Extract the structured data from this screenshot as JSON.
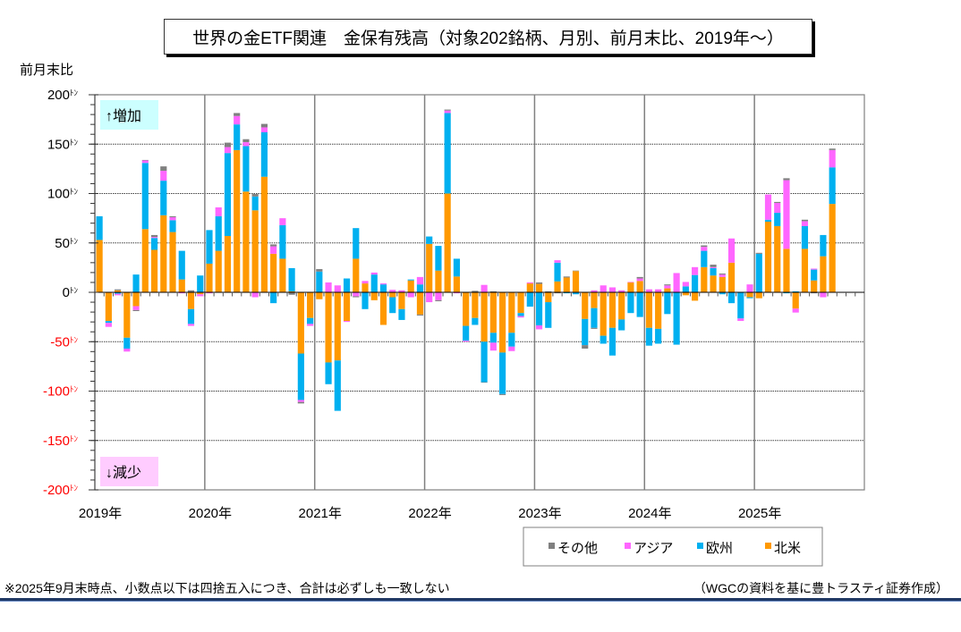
{
  "page": {
    "footnote": "※2025年9月末時点、小数点以下は四捨五入につき、合計は必ずしも一致しない",
    "source": "（WGCの資料を基に豊トラスティ証券作成）"
  },
  "chart_data": {
    "type": "bar",
    "stacked": true,
    "title": "世界の金ETF関連　金保有残高（対象202銘柄、月別、前月末比、2019年～）",
    "xlabel": "",
    "ylabel": "前月末比",
    "y_unit_suffix": "ﾄﾝ",
    "ylim": [
      -200,
      200
    ],
    "y_ticks": [
      200,
      150,
      100,
      50,
      0,
      -50,
      -100,
      -150,
      -200
    ],
    "y_minor_step": 10,
    "negative_label_color": "#FF0000",
    "grid": true,
    "xlim": [
      "2019-01",
      "2025-12"
    ],
    "x_ticks": [
      {
        "month": "2019-01",
        "label": "2019年"
      },
      {
        "month": "2020-01",
        "label": "2020年"
      },
      {
        "month": "2021-01",
        "label": "2021年"
      },
      {
        "month": "2022-01",
        "label": "2022年"
      },
      {
        "month": "2023-01",
        "label": "2023年"
      },
      {
        "month": "2024-01",
        "label": "2024年"
      },
      {
        "month": "2025-01",
        "label": "2025年"
      }
    ],
    "annotations": {
      "increase": {
        "text": "↑増加",
        "color": "#CCFFFF"
      },
      "decrease": {
        "text": "↓減少",
        "color": "#FFCCFF"
      }
    },
    "legend": {
      "position": "bottom-right"
    },
    "categories": [
      "2019-01",
      "2019-02",
      "2019-03",
      "2019-04",
      "2019-05",
      "2019-06",
      "2019-07",
      "2019-08",
      "2019-09",
      "2019-10",
      "2019-11",
      "2019-12",
      "2020-01",
      "2020-02",
      "2020-03",
      "2020-04",
      "2020-05",
      "2020-06",
      "2020-07",
      "2020-08",
      "2020-09",
      "2020-10",
      "2020-11",
      "2020-12",
      "2021-01",
      "2021-02",
      "2021-03",
      "2021-04",
      "2021-05",
      "2021-06",
      "2021-07",
      "2021-08",
      "2021-09",
      "2021-10",
      "2021-11",
      "2021-12",
      "2022-01",
      "2022-02",
      "2022-03",
      "2022-04",
      "2022-05",
      "2022-06",
      "2022-07",
      "2022-08",
      "2022-09",
      "2022-10",
      "2022-11",
      "2022-12",
      "2023-01",
      "2023-02",
      "2023-03",
      "2023-04",
      "2023-05",
      "2023-06",
      "2023-07",
      "2023-08",
      "2023-09",
      "2023-10",
      "2023-11",
      "2023-12",
      "2024-01",
      "2024-02",
      "2024-03",
      "2024-04",
      "2024-05",
      "2024-06",
      "2024-07",
      "2024-08",
      "2024-09",
      "2024-10",
      "2024-11",
      "2024-12",
      "2025-01",
      "2025-02",
      "2025-03",
      "2025-04",
      "2025-05",
      "2025-06",
      "2025-07",
      "2025-08",
      "2025-09"
    ],
    "series": [
      {
        "name": "北米",
        "key": "north-america",
        "color": "#FF9900",
        "values": [
          53,
          -29,
          2,
          -46,
          -14,
          64,
          43,
          78,
          61,
          13,
          -17,
          -2,
          29,
          42,
          57,
          144,
          102,
          83,
          117,
          39,
          34,
          1,
          -62,
          -26,
          -7,
          -71,
          -69,
          -29,
          34,
          9,
          -8,
          -33,
          -5,
          -17,
          12,
          -22.5,
          49,
          22,
          100,
          16,
          -34,
          -26,
          -50,
          -41,
          -61,
          -41,
          -21,
          9,
          8.5,
          -10,
          11,
          15,
          21.5,
          -27,
          -16,
          -44,
          -36,
          -27.5,
          10,
          11.5,
          -36,
          -37,
          4,
          0,
          -3,
          -8.5,
          25.5,
          17,
          15.5,
          30,
          0,
          -5,
          -6,
          71.5,
          67,
          44,
          -16.5,
          44,
          12,
          36.5,
          89.5
        ]
      },
      {
        "name": "欧州",
        "key": "europe",
        "color": "#00B0F0",
        "values": [
          24,
          -2,
          -1.5,
          -11,
          18,
          67,
          12,
          35,
          12,
          29,
          -15,
          17,
          34,
          35,
          84,
          26,
          46,
          14,
          45,
          -11,
          34,
          23.5,
          -47,
          -6,
          21,
          -22,
          -51,
          14,
          31,
          -17,
          18,
          8,
          -16,
          -11,
          1,
          8,
          7.5,
          25,
          81.5,
          18,
          -15,
          -7,
          -41,
          -10,
          -42,
          -14,
          -3,
          -14.5,
          -33.5,
          -26,
          19,
          -1,
          -2,
          -26.5,
          -20,
          -8,
          -28,
          -11,
          -21,
          -25,
          -18,
          -15,
          -22,
          -53,
          6,
          17.5,
          16.5,
          7.5,
          -2,
          -11,
          -26.5,
          -1,
          39,
          2,
          13.5,
          -1,
          1,
          23,
          11,
          21.5,
          37
        ]
      },
      {
        "name": "アジア",
        "key": "asia",
        "color": "#FF66FF",
        "values": [
          0,
          -4,
          -1.5,
          -3,
          -4,
          2.5,
          1,
          10,
          3,
          -1,
          -2,
          -2,
          -1,
          9,
          6,
          8.5,
          4,
          -5,
          5,
          7.5,
          7,
          0,
          -2,
          -2,
          0,
          10,
          7,
          -1,
          -4,
          2.5,
          2,
          1,
          2.5,
          2,
          -5,
          7.5,
          -10,
          -8,
          2.5,
          -1,
          -1,
          0,
          7.5,
          -8,
          0,
          -4.5,
          -1.5,
          1,
          -4,
          0,
          2.5,
          0,
          0,
          0,
          2,
          7,
          5,
          2,
          0.5,
          2.5,
          3,
          3,
          3,
          19.5,
          4.5,
          8,
          4,
          1,
          2.5,
          24.5,
          -2.5,
          8,
          0,
          25.5,
          10,
          69.5,
          -4,
          5,
          1,
          -5,
          17.5
        ]
      },
      {
        "name": "その他",
        "key": "other",
        "color": "#808080",
        "values": [
          0,
          0,
          1,
          0,
          -1,
          0.5,
          2,
          4.5,
          1,
          0,
          2,
          0,
          0,
          0,
          4.5,
          3,
          3,
          2.5,
          3.5,
          2,
          0,
          -2.5,
          -1.5,
          0,
          2.5,
          0,
          0,
          0,
          -1,
          0,
          0,
          0,
          0,
          0,
          0,
          -1,
          0,
          -1,
          1,
          0,
          0,
          1.5,
          -0.5,
          1,
          -1,
          0,
          0,
          0,
          1.5,
          1,
          -1,
          1,
          0.5,
          -3.5,
          -1,
          0,
          0,
          0,
          0,
          1.5,
          0,
          0,
          1,
          0,
          0,
          0,
          1.5,
          2.5,
          1,
          0,
          0,
          0,
          1,
          0,
          1,
          2,
          0,
          1.5,
          -1,
          0,
          1.5
        ]
      }
    ]
  }
}
